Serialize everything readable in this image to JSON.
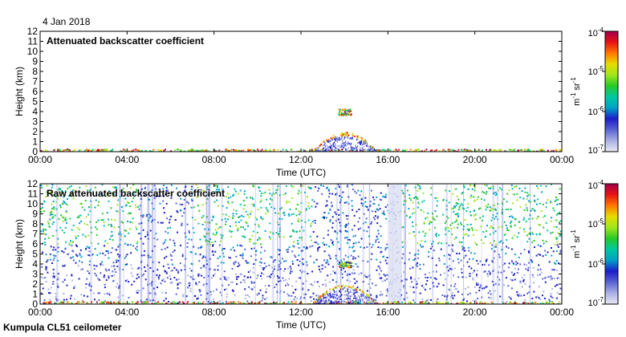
{
  "date": "4 Jan 2018",
  "footer": "Kumpula CL51 ceilometer",
  "colors": {
    "colormap": [
      "#e9e9f5",
      "#aab0e6",
      "#5a64d2",
      "#1c1cc8",
      "#00a0c8",
      "#00c8a0",
      "#28c828",
      "#a0e61e",
      "#e6dc00",
      "#ff7800",
      "#e61414",
      "#a0004b"
    ],
    "axis": "#000000"
  },
  "chart_data": [
    {
      "type": "heatmap",
      "title": "Attenuated backscatter coefficient",
      "xlabel": "Time (UTC)",
      "ylabel": "Height (km)",
      "x_ticks": [
        "00:00",
        "04:00",
        "08:00",
        "12:00",
        "16:00",
        "20:00",
        "00:00"
      ],
      "y_ticks": [
        "0",
        "1",
        "2",
        "3",
        "4",
        "5",
        "6",
        "7",
        "8",
        "9",
        "10",
        "11",
        "12"
      ],
      "xlim_hours": [
        0,
        24
      ],
      "ylim_km": [
        0,
        12
      ],
      "colorbar": {
        "ticks": [
          "10-4",
          "10-5",
          "10-6",
          "10-7"
        ],
        "label": "m-1 sr-1",
        "scale": "log",
        "range": [
          1e-07,
          0.0001
        ]
      },
      "features": [
        {
          "kind": "surface-layer",
          "t_start": 0,
          "t_end": 24,
          "top_km": 0.3
        },
        {
          "kind": "low-cloud",
          "t_start": 12.5,
          "t_end": 15.5,
          "top_km": 2.0
        },
        {
          "kind": "elevated-layer",
          "t_start": 13.7,
          "t_end": 14.3,
          "bottom_km": 3.7,
          "top_km": 4.3
        }
      ]
    },
    {
      "type": "heatmap",
      "title": "Raw attenuated backscatter coefficient",
      "xlabel": "Time (UTC)",
      "ylabel": "Height (km)",
      "x_ticks": [
        "00:00",
        "04:00",
        "08:00",
        "12:00",
        "16:00",
        "20:00",
        "00:00"
      ],
      "y_ticks": [
        "0",
        "1",
        "2",
        "3",
        "4",
        "5",
        "6",
        "7",
        "8",
        "9",
        "10",
        "11",
        "12"
      ],
      "xlim_hours": [
        0,
        24
      ],
      "ylim_km": [
        0,
        12
      ],
      "colorbar": {
        "ticks": [
          "10-4",
          "10-5",
          "10-6",
          "10-7"
        ],
        "label": "m-1 sr-1",
        "scale": "log",
        "range": [
          1e-07,
          0.0001
        ]
      },
      "features": [
        {
          "kind": "background-noise",
          "t_start": 0,
          "t_end": 24,
          "bottom_km": 1.5,
          "top_km": 12
        },
        {
          "kind": "clear-band",
          "t_start": 16.0,
          "t_end": 16.6
        },
        {
          "kind": "surface-layer",
          "t_start": 0,
          "t_end": 24,
          "top_km": 0.3
        },
        {
          "kind": "low-cloud",
          "t_start": 12.5,
          "t_end": 15.5,
          "top_km": 2.0
        },
        {
          "kind": "elevated-layer",
          "t_start": 13.7,
          "t_end": 14.3,
          "bottom_km": 3.7,
          "top_km": 4.3
        }
      ]
    }
  ]
}
